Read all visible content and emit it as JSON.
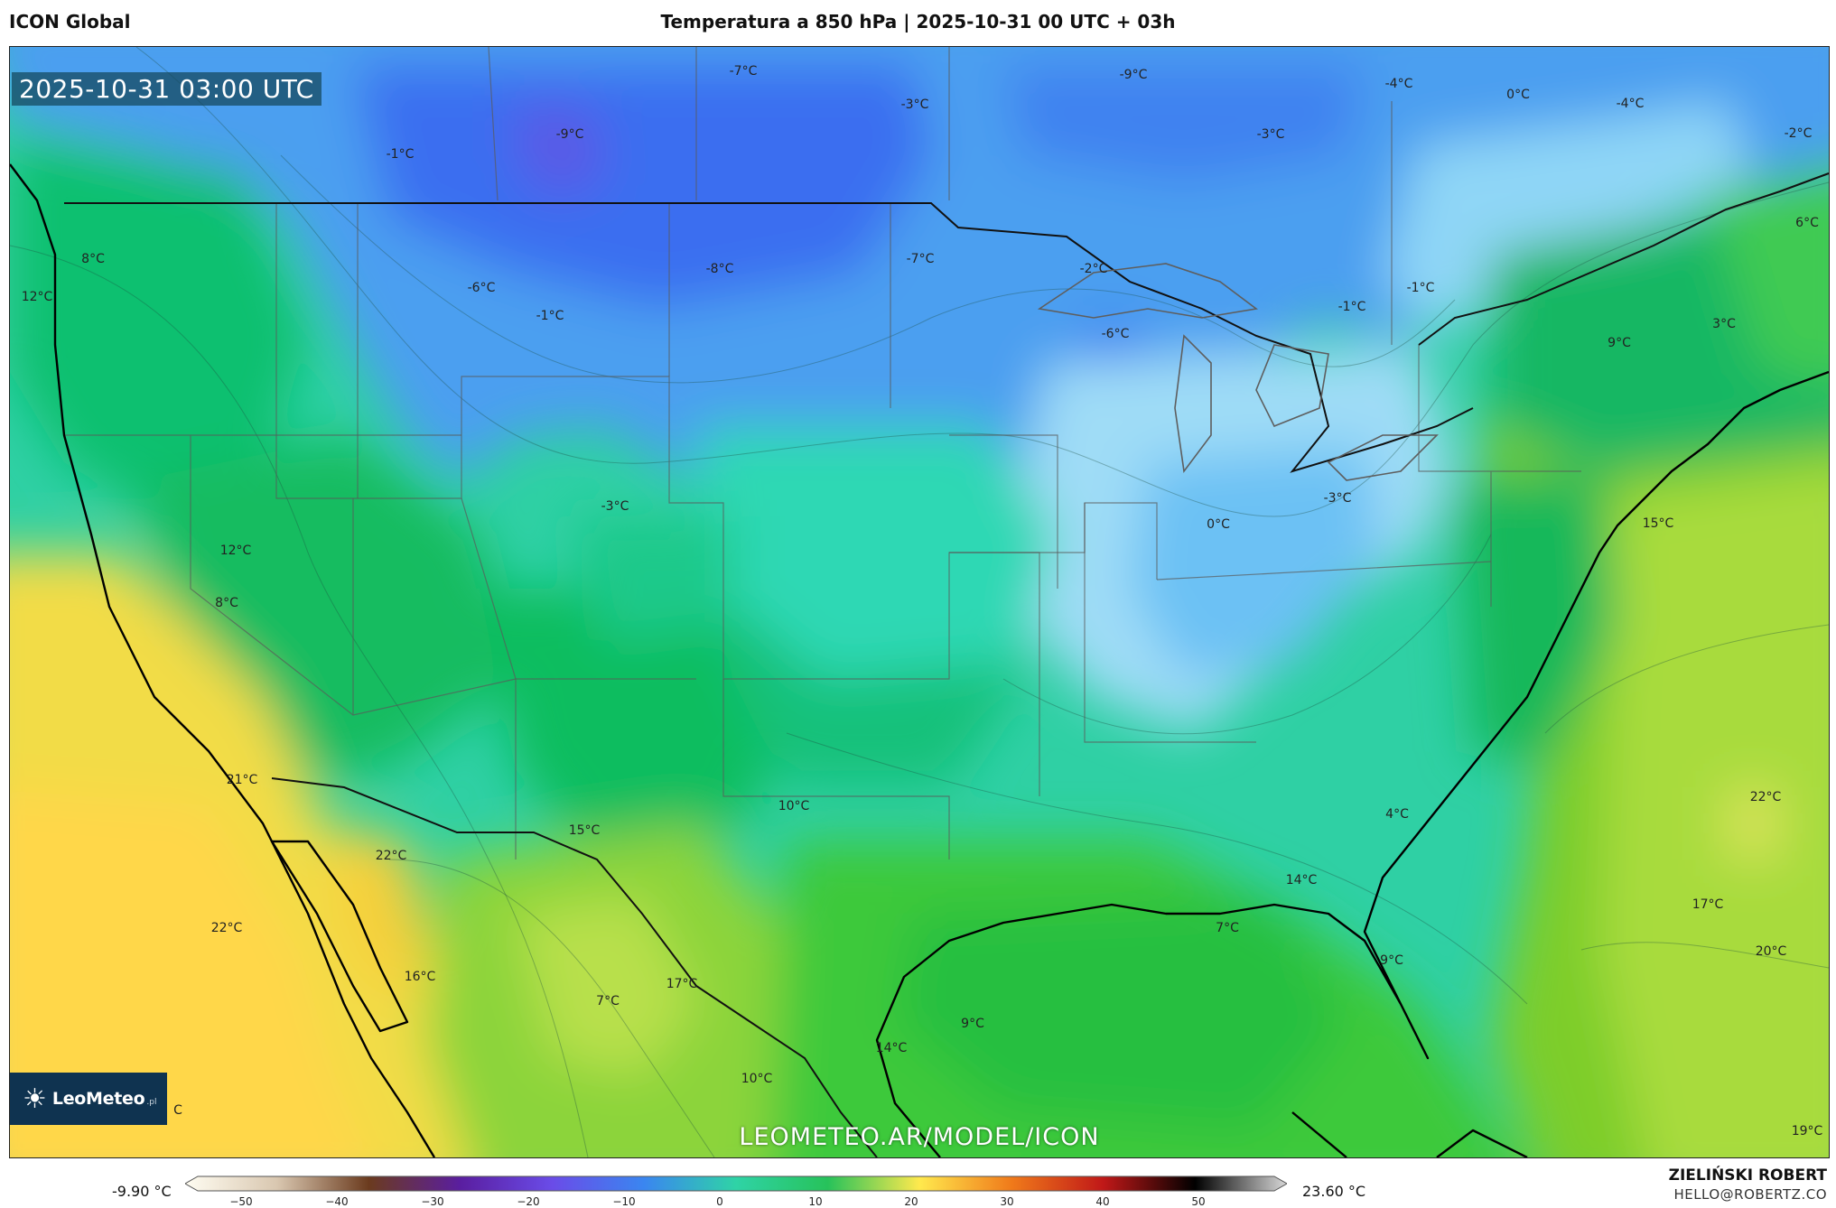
{
  "header": {
    "model_name": "ICON Global",
    "title": "Temperatura a 850 hPa | 2025-10-31 00 UTC + 03h"
  },
  "map": {
    "valid_time": "2025-10-31 03:00 UTC",
    "watermark": "LEOMETEO.AR/MODEL/ICON",
    "logo": {
      "text": "LeoMeteo",
      "suffix": ".pl",
      "icon": "sun-icon"
    },
    "labels": [
      "-7°C",
      "-9°C",
      "-3°C",
      "-4°C",
      "0°C",
      "-4°C",
      "-2°C",
      "-1°C",
      "-9°C",
      "-3°C",
      "6°C",
      "8°C",
      "12°C",
      "-6°C",
      "-1°C",
      "-8°C",
      "-7°C",
      "-2°C",
      "-1°C",
      "-1°C",
      "-6°C",
      "3°C",
      "9°C",
      "-3°C",
      "0°C",
      "-3°C",
      "15°C",
      "12°C",
      "8°C",
      "21°C",
      "22°C",
      "22°C",
      "16°C",
      "15°C",
      "10°C",
      "4°C",
      "22°C",
      "14°C",
      "7°C",
      "9°C",
      "17°C",
      "20°C",
      "7°C",
      "17°C",
      "9°C",
      "14°C",
      "10°C",
      "19°C",
      "C"
    ]
  },
  "colorbar": {
    "min_label": "-9.90 °C",
    "max_label": "23.60 °C",
    "ticks": [
      "−50",
      "−40",
      "−30",
      "−20",
      "−10",
      "0",
      "10",
      "20",
      "30",
      "40",
      "50"
    ],
    "stops": [
      "#fffdf2",
      "#d9c7b0",
      "#6b3b1e",
      "#5a1ea0",
      "#6a4ce8",
      "#3a86f0",
      "#2fd3a6",
      "#27c25a",
      "#ffe94d",
      "#f07a1a",
      "#c01818",
      "#000000",
      "#d8d8d8"
    ]
  },
  "footer": {
    "author": "ZIELIŃSKI ROBERT",
    "email": "HELLO@ROBERTZ.CO"
  }
}
